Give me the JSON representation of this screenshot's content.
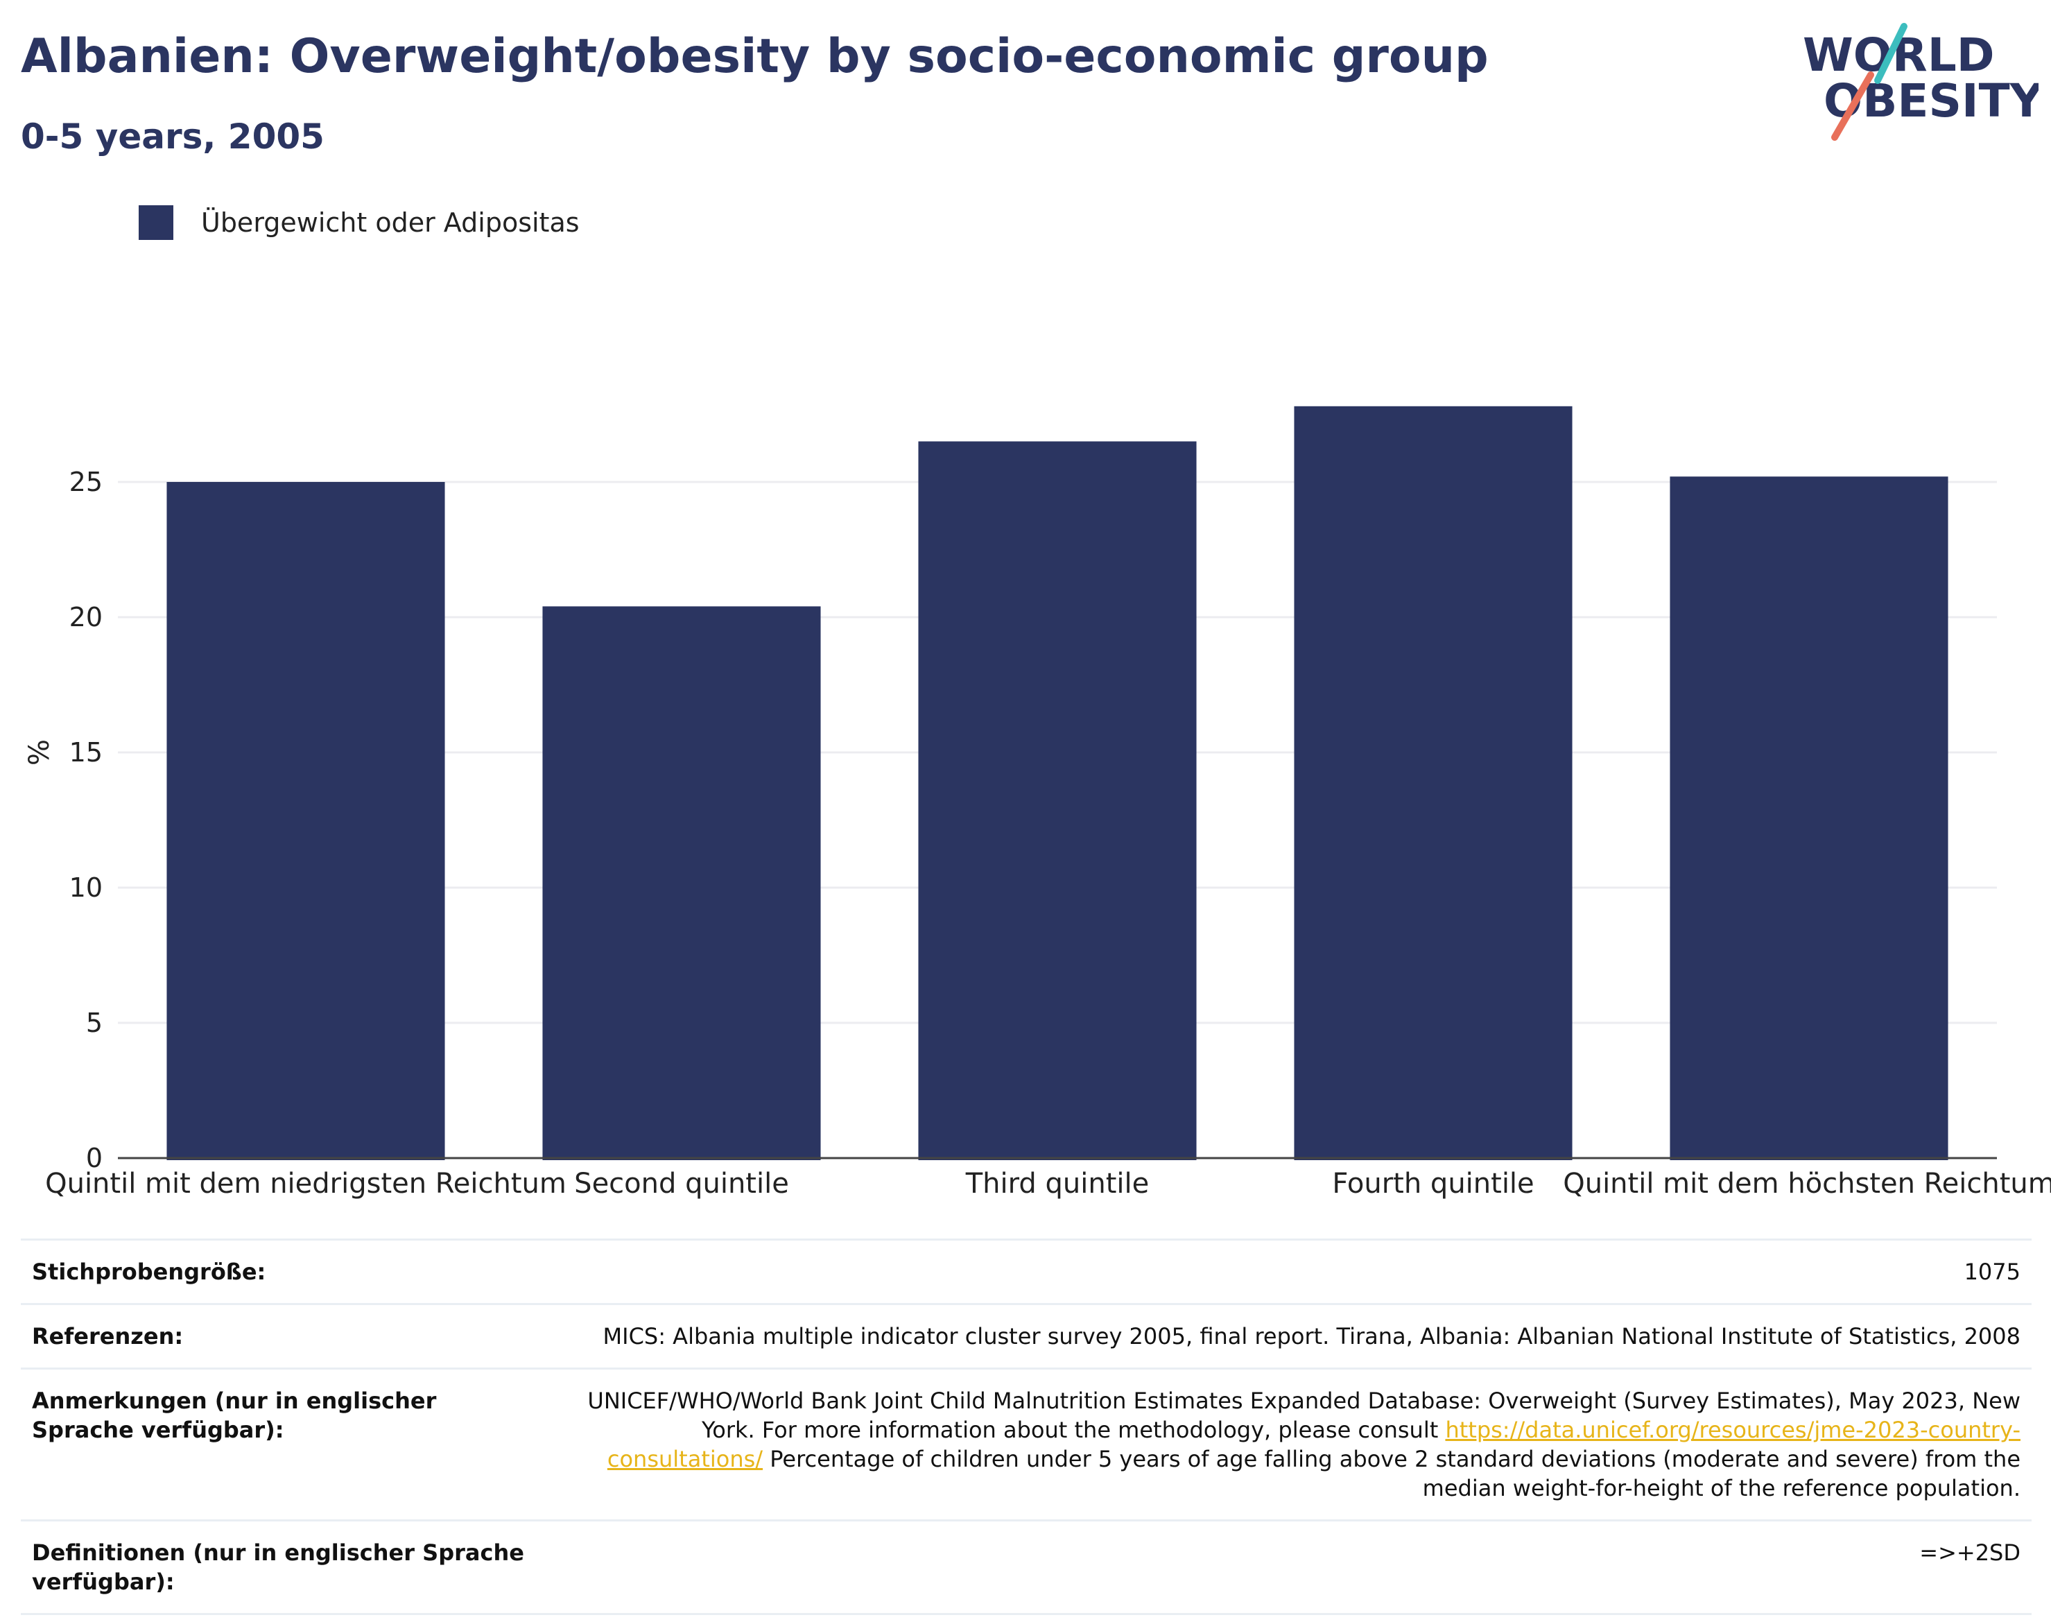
{
  "header": {
    "title": "Albanien: Overweight/obesity by socio-economic group",
    "subtitle": "0-5 years, 2005"
  },
  "logo": {
    "line1": "WORLD",
    "line2": "OBESITY"
  },
  "legend": {
    "label": "Übergewicht oder Adipositas"
  },
  "colors": {
    "bar": "#2b3561",
    "title": "#2b3561",
    "grid": "#ececf0",
    "link": "#e7b419",
    "logo_teal": "#3cbdbe",
    "logo_coral": "#e8705a"
  },
  "chart_data": {
    "type": "bar",
    "categories": [
      "Quintil mit dem niedrigsten Reichtum",
      "Second quintile",
      "Third quintile",
      "Fourth quintile",
      "Quintil mit dem höchsten Reichtum"
    ],
    "series": [
      {
        "name": "Übergewicht oder Adipositas",
        "values": [
          25.0,
          20.4,
          26.5,
          27.8,
          25.2
        ]
      }
    ],
    "title": "Albanien: Overweight/obesity by socio-economic group",
    "subtitle": "0-5 years, 2005",
    "xlabel": "",
    "ylabel": "%",
    "ylim": [
      0,
      30
    ],
    "yticks": [
      0,
      5,
      10,
      15,
      20,
      25
    ],
    "grid": true,
    "legend_position": "top-left"
  },
  "info": {
    "sample_label": "Stichprobengröße:",
    "sample_value": "1075",
    "refs_label": "Referenzen:",
    "refs_value": "MICS: Albania multiple indicator cluster survey 2005, final report. Tirana, Albania: Albanian National Institute of Statistics, 2008",
    "notes_label": "Anmerkungen (nur in englischer Sprache verfügbar):",
    "notes_text1": "UNICEF/WHO/World Bank Joint Child Malnutrition Estimates Expanded Database: Overweight (Survey Estimates), May 2023, New York. For more information about the methodology, please consult",
    "notes_link": "https://data.unicef.org/resources/jme-2023-country-consultations/",
    "notes_text2": "Percentage of children under 5 years of age falling above 2 standard deviations (moderate and severe) from the median weight-for-height of the reference population.",
    "defs_label": "Definitionen (nur in englischer Sprache verfügbar):",
    "defs_value": "=>+2SD"
  }
}
